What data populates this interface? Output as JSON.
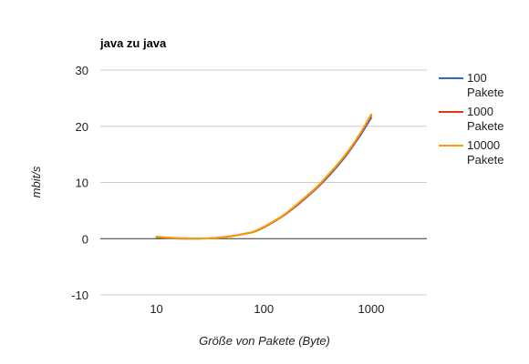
{
  "chart_data": {
    "type": "line",
    "title": "java zu java",
    "xlabel": "Größe von Pakete (Byte)",
    "ylabel": "mbit/s",
    "x_scale": "log",
    "xlim": [
      3,
      3300
    ],
    "ylim": [
      -10,
      30
    ],
    "x_ticks": [
      10,
      100,
      1000
    ],
    "x_tick_labels": [
      "10",
      "100",
      "1000"
    ],
    "y_ticks": [
      -10,
      0,
      10,
      20,
      30
    ],
    "y_tick_labels": [
      "-10",
      "0",
      "10",
      "20",
      "30"
    ],
    "grid": true,
    "legend_position": "right",
    "x": [
      10,
      15,
      20,
      30,
      40,
      50,
      60,
      70,
      80,
      100,
      150,
      200,
      300,
      400,
      500,
      600,
      700,
      800,
      1000
    ],
    "series": [
      {
        "name": "100 Pakete",
        "color": "#3366cc",
        "values": [
          0.25,
          0.05,
          0.0,
          0.05,
          0.2,
          0.45,
          0.7,
          0.95,
          1.2,
          2.0,
          4.0,
          5.8,
          8.7,
          11.1,
          13.2,
          15.1,
          16.9,
          18.5,
          21.5
        ]
      },
      {
        "name": "1000 Pakete",
        "color": "#dc3912",
        "values": [
          0.3,
          0.1,
          0.05,
          0.05,
          0.2,
          0.45,
          0.7,
          0.95,
          1.2,
          2.05,
          4.05,
          5.9,
          8.8,
          11.3,
          13.4,
          15.3,
          17.1,
          18.8,
          21.9
        ]
      },
      {
        "name": "10000 Pakete",
        "color": "#ff9900",
        "values": [
          0.35,
          0.1,
          0.05,
          0.05,
          0.2,
          0.45,
          0.7,
          0.95,
          1.25,
          2.1,
          4.1,
          6.0,
          8.9,
          11.4,
          13.5,
          15.4,
          17.2,
          18.9,
          22.1
        ]
      }
    ]
  }
}
